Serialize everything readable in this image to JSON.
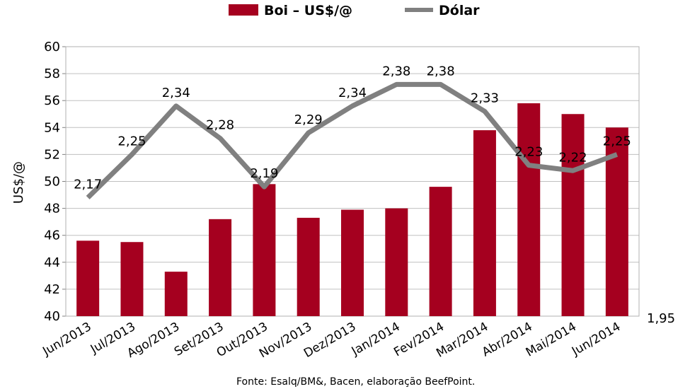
{
  "chart_data": {
    "type": "bar",
    "categories": [
      "Jun/2013",
      "Jul/2013",
      "Ago/2013",
      "Set/2013",
      "Out/2013",
      "Nov/2013",
      "Dez/2013",
      "Jan/2014",
      "Fev/2014",
      "Mar/2014",
      "Abr/2014",
      "Mai/2014",
      "Jun/2014"
    ],
    "series": [
      {
        "name": "Boi – US$/@",
        "type": "bar",
        "axis": "left",
        "color": "#a5001f",
        "values": [
          45.6,
          45.5,
          43.3,
          47.2,
          49.8,
          47.3,
          47.9,
          48.0,
          49.6,
          53.8,
          55.8,
          55.0,
          54.0
        ]
      },
      {
        "name": "Dólar",
        "type": "line",
        "axis": "right",
        "color": "#808080",
        "values": [
          2.17,
          2.25,
          2.34,
          2.28,
          2.19,
          2.29,
          2.34,
          2.38,
          2.38,
          2.33,
          2.23,
          2.22,
          2.25
        ],
        "labels": [
          "2,17",
          "2,25",
          "2,34",
          "2,28",
          "2,19",
          "2,29",
          "2,34",
          "2,38",
          "2,38",
          "2,33",
          "2,23",
          "2,22",
          "2,25"
        ]
      }
    ],
    "ylabel": "US$/@",
    "ylim": [
      40,
      60
    ],
    "yticks": [
      "40",
      "42",
      "44",
      "46",
      "48",
      "50",
      "52",
      "54",
      "56",
      "58",
      "60"
    ],
    "y2lim": [
      1.95,
      2.45
    ],
    "y2ticks": [
      "1,95"
    ],
    "grid": true,
    "legend_position": "top"
  },
  "source": "Fonte: Esalq/BM&, Bacen, elaboração BeefPoint."
}
